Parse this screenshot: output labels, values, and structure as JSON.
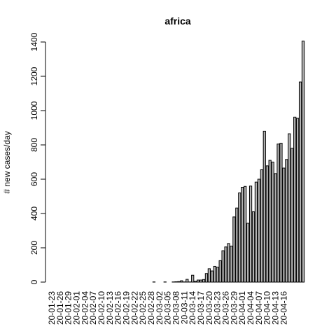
{
  "chart_data": {
    "type": "bar",
    "title": "africa",
    "ylabel": "# new cases/day",
    "xlabel": "",
    "ylim": [
      0,
      1400
    ],
    "yticks": [
      0,
      200,
      400,
      600,
      800,
      1000,
      1200,
      1400
    ],
    "xtick_labels": [
      "20-01-23",
      "20-01-26",
      "20-01-29",
      "20-02-01",
      "20-02-04",
      "20-02-07",
      "20-02-10",
      "20-02-13",
      "20-02-16",
      "20-02-19",
      "20-02-22",
      "20-02-25",
      "20-02-28",
      "20-03-02",
      "20-03-05",
      "20-03-08",
      "20-03-11",
      "20-03-14",
      "20-03-17",
      "20-03-20",
      "20-03-23",
      "20-03-26",
      "20-03-29",
      "20-04-01",
      "20-04-04",
      "20-04-07",
      "20-04-10",
      "20-04-13",
      "20-04-16"
    ],
    "bar_color": "#b3b3b3",
    "first_date": "2020-01-23",
    "values": [
      0,
      0,
      0,
      0,
      0,
      0,
      0,
      0,
      0,
      0,
      0,
      0,
      0,
      0,
      0,
      0,
      0,
      0,
      0,
      0,
      0,
      0,
      0,
      0,
      0,
      0,
      0,
      0,
      0,
      0,
      0,
      0,
      0,
      0,
      0,
      0,
      0,
      1,
      0,
      0,
      0,
      1,
      0,
      0,
      1,
      2,
      3,
      8,
      1,
      16,
      1,
      40,
      5,
      12,
      12,
      15,
      50,
      78,
      65,
      92,
      87,
      125,
      183,
      205,
      225,
      210,
      380,
      432,
      520,
      553,
      558,
      343,
      560,
      410,
      583,
      600,
      655,
      880,
      678,
      710,
      700,
      633,
      805,
      810,
      665,
      715,
      865,
      780,
      962,
      955,
      1167,
      1405
    ]
  }
}
